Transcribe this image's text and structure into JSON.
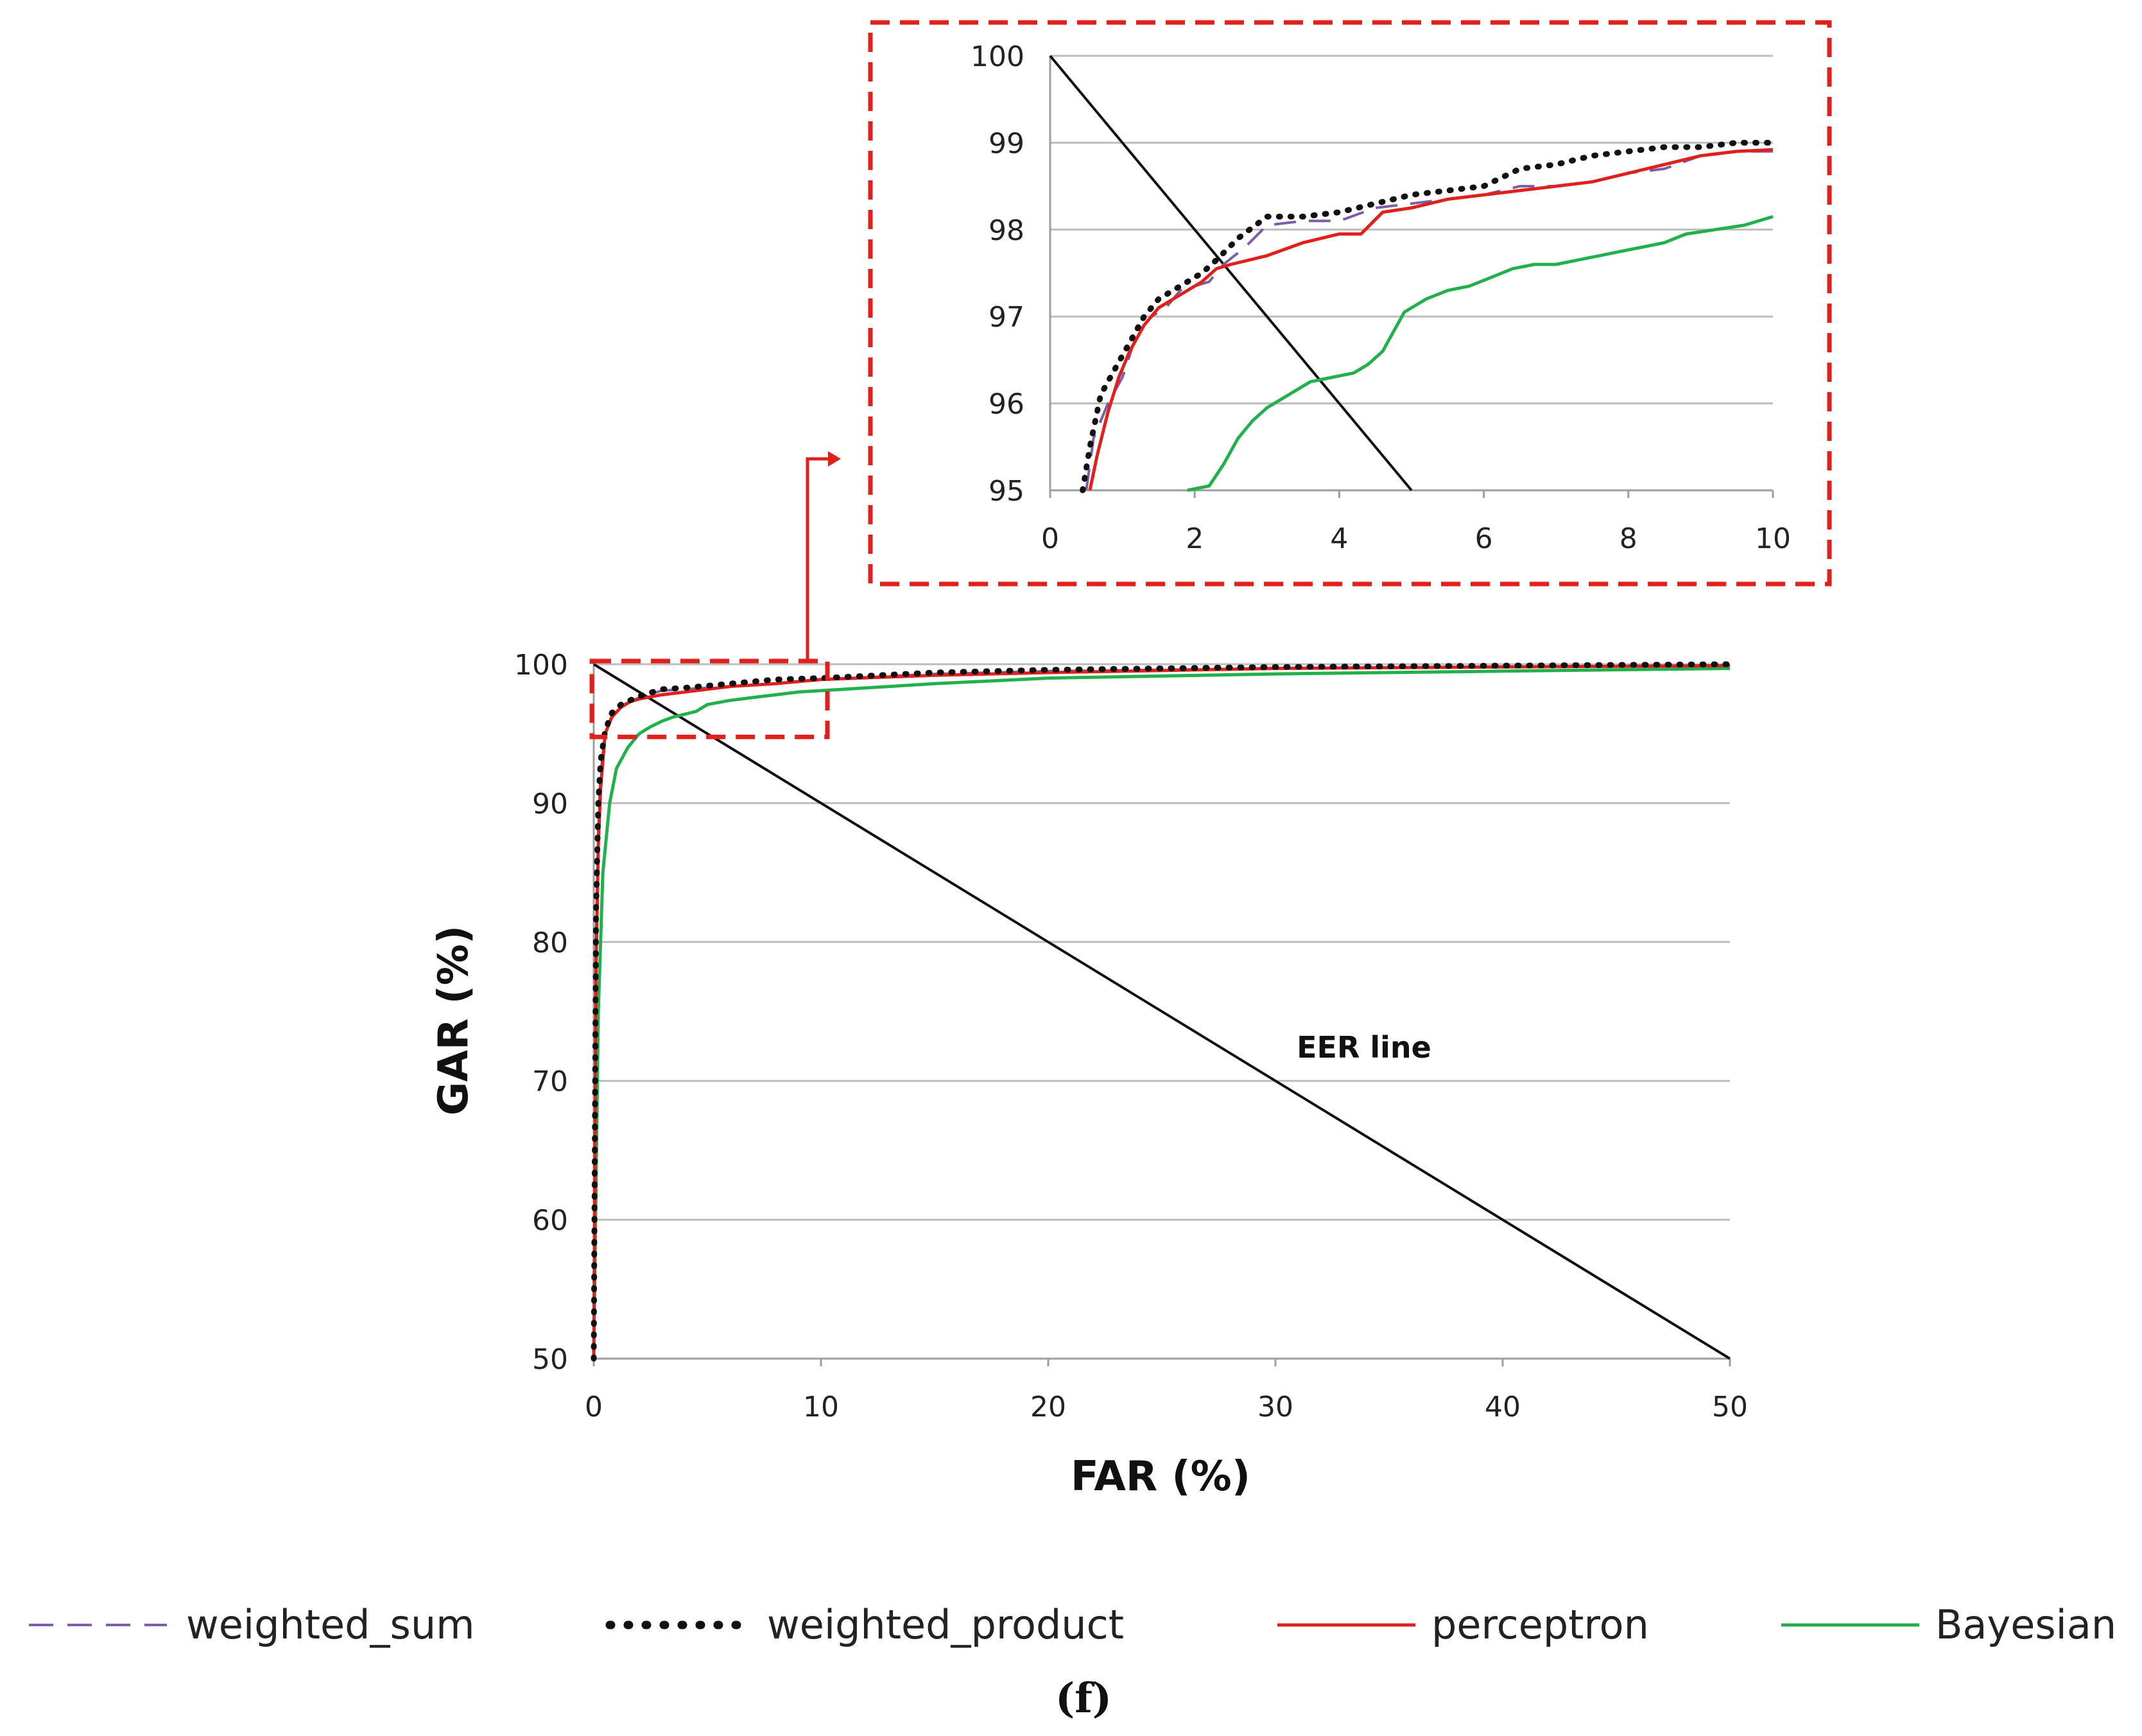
{
  "chart_data": [
    {
      "id": "main",
      "type": "line",
      "title": "",
      "xlabel": "FAR (%)",
      "ylabel": "GAR (%)",
      "xlim": [
        0,
        50
      ],
      "ylim": [
        50,
        100
      ],
      "xticks": [
        "0",
        "10",
        "20",
        "30",
        "40",
        "50"
      ],
      "yticks": [
        "50",
        "60",
        "70",
        "80",
        "90",
        "100"
      ],
      "grid": true,
      "annotation": "EER line",
      "series": [
        {
          "name": "weighted_sum",
          "color": "#7b5ea7",
          "style": "dashed",
          "x": [
            0,
            0.1,
            0.2,
            0.3,
            0.5,
            0.8,
            1.2,
            1.6,
            2.0,
            3.0,
            4.0,
            6.0,
            8.0,
            10.0,
            15.0,
            20.0,
            30.0,
            40.0,
            50.0
          ],
          "y": [
            50,
            80,
            88,
            92,
            95,
            96.3,
            97.0,
            97.3,
            97.6,
            98.1,
            98.2,
            98.4,
            98.6,
            98.9,
            99.3,
            99.5,
            99.7,
            99.8,
            99.9
          ]
        },
        {
          "name": "weighted_product",
          "color": "#111111",
          "style": "dotted",
          "x": [
            0,
            0.1,
            0.2,
            0.3,
            0.5,
            0.8,
            1.2,
            1.6,
            2.0,
            3.0,
            4.0,
            6.0,
            8.0,
            10.0,
            15.0,
            20.0,
            30.0,
            40.0,
            50.0
          ],
          "y": [
            50,
            82,
            90,
            93,
            95.2,
            96.5,
            97.1,
            97.4,
            97.7,
            98.2,
            98.3,
            98.6,
            98.9,
            99.0,
            99.4,
            99.6,
            99.8,
            99.9,
            100
          ]
        },
        {
          "name": "perceptron",
          "color": "#e0201b",
          "style": "solid",
          "x": [
            0,
            0.1,
            0.2,
            0.3,
            0.5,
            0.8,
            1.2,
            1.6,
            2.0,
            3.0,
            4.0,
            6.0,
            8.0,
            10.0,
            15.0,
            20.0,
            30.0,
            40.0,
            50.0
          ],
          "y": [
            50,
            78,
            87,
            91,
            95.0,
            96.2,
            96.9,
            97.3,
            97.5,
            97.8,
            98.0,
            98.4,
            98.6,
            98.9,
            99.2,
            99.4,
            99.7,
            99.8,
            99.9
          ]
        },
        {
          "name": "Bayesian",
          "color": "#22b04c",
          "style": "solid",
          "x": [
            0,
            0.2,
            0.4,
            0.7,
            1.0,
            1.5,
            2.0,
            2.5,
            3.0,
            3.5,
            4.0,
            4.5,
            5.0,
            6.0,
            7.0,
            8.0,
            9.0,
            10.0,
            15.0,
            20.0,
            30.0,
            40.0,
            50.0
          ],
          "y": [
            50,
            75,
            85,
            90,
            92.5,
            94.0,
            95.0,
            95.5,
            95.9,
            96.2,
            96.4,
            96.6,
            97.1,
            97.4,
            97.6,
            97.8,
            98.0,
            98.1,
            98.6,
            99.0,
            99.3,
            99.5,
            99.7
          ]
        }
      ]
    },
    {
      "id": "inset",
      "type": "line",
      "xlim": [
        0,
        10
      ],
      "ylim": [
        95,
        100
      ],
      "xticks": [
        "0",
        "2",
        "4",
        "6",
        "8",
        "10"
      ],
      "yticks": [
        "95",
        "96",
        "97",
        "98",
        "99",
        "100"
      ],
      "grid": true,
      "series": [
        {
          "name": "weighted_sum",
          "x": [
            0.5,
            0.6,
            0.8,
            1.0,
            1.2,
            1.4,
            1.6,
            1.8,
            2.0,
            2.2,
            2.4,
            2.7,
            3.0,
            3.5,
            4.0,
            4.5,
            5.0,
            5.5,
            6.0,
            6.5,
            7.0,
            7.5,
            8.0,
            8.5,
            9.0,
            9.5,
            10.0
          ],
          "y": [
            95.0,
            95.6,
            96.0,
            96.3,
            96.8,
            97.0,
            97.1,
            97.3,
            97.35,
            97.4,
            97.6,
            97.8,
            98.05,
            98.1,
            98.1,
            98.25,
            98.3,
            98.35,
            98.4,
            98.5,
            98.5,
            98.55,
            98.65,
            98.7,
            98.85,
            98.9,
            98.9
          ]
        },
        {
          "name": "weighted_product",
          "x": [
            0.45,
            0.55,
            0.7,
            0.9,
            1.1,
            1.3,
            1.5,
            1.7,
            1.9,
            2.1,
            2.3,
            2.6,
            3.0,
            3.5,
            4.0,
            4.5,
            5.0,
            5.5,
            6.0,
            6.5,
            7.0,
            7.5,
            8.0,
            8.5,
            9.0,
            9.5,
            10.0
          ],
          "y": [
            95.0,
            95.5,
            96.1,
            96.4,
            96.7,
            97.0,
            97.2,
            97.3,
            97.4,
            97.5,
            97.65,
            97.9,
            98.15,
            98.15,
            98.2,
            98.3,
            98.4,
            98.45,
            98.5,
            98.7,
            98.75,
            98.85,
            98.9,
            98.95,
            98.95,
            99.0,
            99.0
          ]
        },
        {
          "name": "perceptron",
          "x": [
            0.55,
            0.65,
            0.8,
            0.95,
            1.1,
            1.3,
            1.5,
            1.7,
            1.9,
            2.1,
            2.3,
            2.5,
            3.0,
            3.5,
            4.0,
            4.3,
            4.6,
            5.0,
            5.5,
            6.0,
            6.5,
            7.0,
            7.5,
            8.0,
            8.5,
            9.0,
            9.5,
            10.0
          ],
          "y": [
            95.0,
            95.4,
            95.9,
            96.3,
            96.6,
            96.9,
            97.1,
            97.2,
            97.3,
            97.4,
            97.55,
            97.6,
            97.7,
            97.85,
            97.95,
            97.95,
            98.2,
            98.25,
            98.35,
            98.4,
            98.45,
            98.5,
            98.55,
            98.65,
            98.75,
            98.85,
            98.9,
            98.92
          ]
        },
        {
          "name": "Bayesian",
          "x": [
            1.9,
            2.2,
            2.4,
            2.6,
            2.8,
            3.0,
            3.3,
            3.6,
            3.9,
            4.2,
            4.4,
            4.6,
            4.9,
            5.2,
            5.5,
            5.8,
            6.1,
            6.4,
            6.7,
            7.0,
            7.3,
            7.6,
            7.9,
            8.2,
            8.5,
            8.8,
            9.2,
            9.6,
            10.0
          ],
          "y": [
            95.0,
            95.05,
            95.3,
            95.6,
            95.8,
            95.95,
            96.1,
            96.25,
            96.3,
            96.35,
            96.45,
            96.6,
            97.05,
            97.2,
            97.3,
            97.35,
            97.45,
            97.55,
            97.6,
            97.6,
            97.65,
            97.7,
            97.75,
            97.8,
            97.85,
            97.95,
            98.0,
            98.05,
            98.15
          ]
        }
      ]
    }
  ],
  "eer_line": {
    "x": [
      0,
      50
    ],
    "y": [
      100,
      50
    ]
  },
  "zoom_box": {
    "x": [
      0,
      10
    ],
    "y": [
      95,
      100
    ]
  },
  "legend": [
    {
      "label": "weighted_sum",
      "color": "#7b5ea7",
      "style": "dashed"
    },
    {
      "label": "weighted_product",
      "color": "#111111",
      "style": "dotted"
    },
    {
      "label": "perceptron",
      "color": "#e0201b",
      "style": "solid"
    },
    {
      "label": "Bayesian",
      "color": "#22b04c",
      "style": "solid"
    }
  ],
  "panel_label": "(f)"
}
